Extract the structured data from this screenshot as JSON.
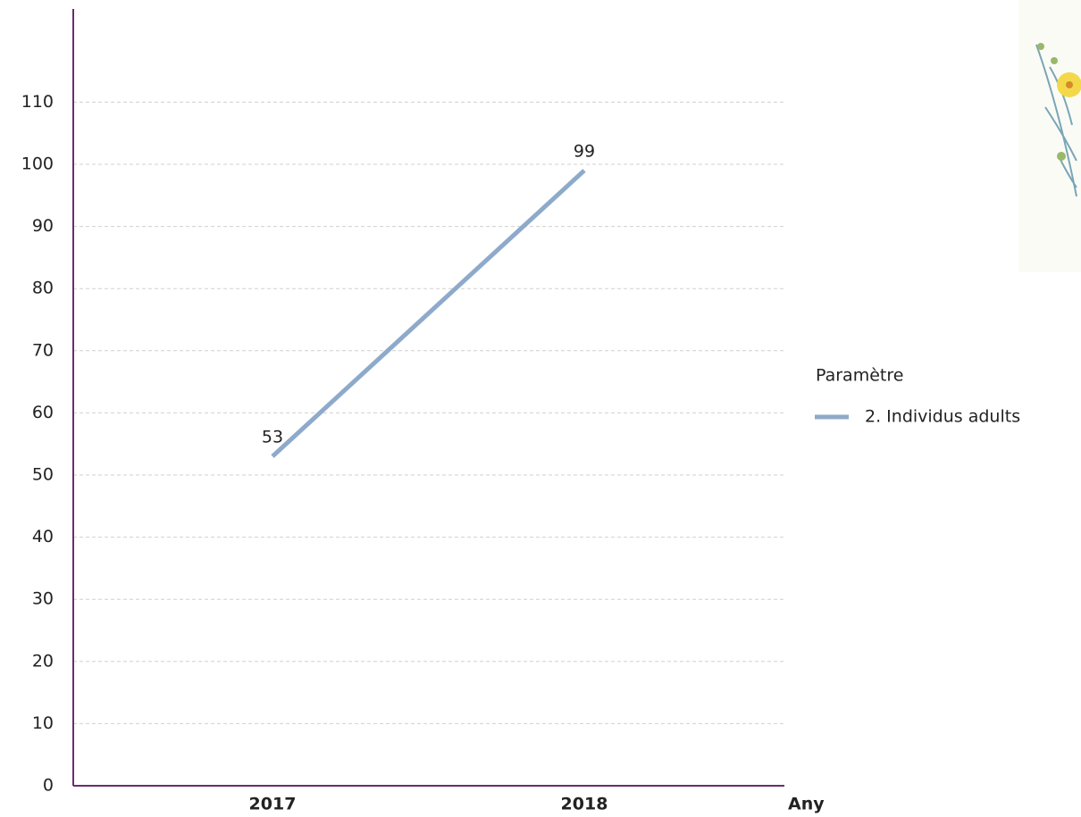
{
  "chart_data": {
    "type": "line",
    "x_label": "Any",
    "categories": [
      "2017",
      "2018"
    ],
    "series": [
      {
        "name": "2. Individus adults",
        "color": "#8eaacb",
        "values": [
          53,
          99
        ]
      }
    ],
    "ylim": [
      0,
      125
    ],
    "yticks": [
      0,
      10,
      20,
      30,
      40,
      50,
      60,
      70,
      80,
      90,
      100,
      110
    ],
    "grid": true,
    "legend_title": "Paramètre",
    "legend": "right"
  }
}
